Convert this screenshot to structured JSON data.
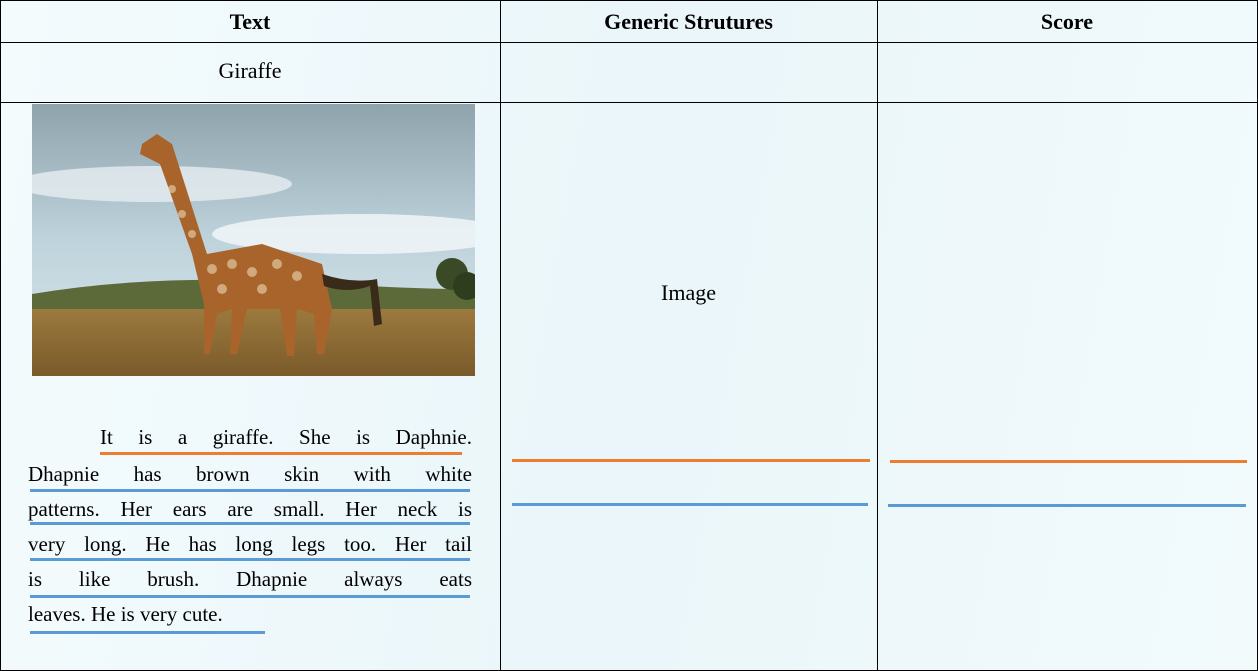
{
  "table": {
    "headers": [
      "Text",
      "Generic Strutures",
      "Score"
    ],
    "title_cell": "Giraffe",
    "text_lines": [
      "It is a giraffe. She is Daphnie.",
      "Dhapnie has brown skin with white",
      "patterns. Her ears are small. Her neck is",
      "very long. He has long legs too. Her tail",
      "is like brush. Dhapnie always eats",
      "leaves. He is very cute."
    ],
    "structure_cell": "Image"
  }
}
